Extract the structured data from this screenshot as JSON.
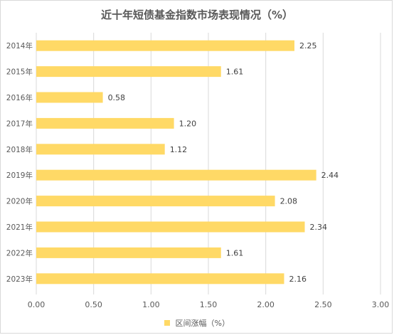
{
  "title": "近十年短债基金指数市场表现情况（%）",
  "chart_data": {
    "type": "bar",
    "orientation": "horizontal",
    "title": "近十年短债基金指数市场表现情况（%）",
    "categories": [
      "2014年",
      "2015年",
      "2016年",
      "2017年",
      "2018年",
      "2019年",
      "2020年",
      "2021年",
      "2022年",
      "2023年"
    ],
    "series": [
      {
        "name": "区间涨幅（%）",
        "values": [
          2.25,
          1.61,
          0.58,
          1.2,
          1.12,
          2.44,
          2.08,
          2.34,
          1.61,
          2.16
        ],
        "labels": [
          "2.25",
          "1.61",
          "0.58",
          "1.20",
          "1.12",
          "2.44",
          "2.08",
          "2.34",
          "1.61",
          "2.16"
        ]
      }
    ],
    "xlim": [
      0,
      3
    ],
    "xticks": [
      "0.00",
      "0.50",
      "1.00",
      "1.50",
      "2.00",
      "2.50",
      "3.00"
    ],
    "grid": true,
    "legend_position": "bottom",
    "bar_color": "#FFD966"
  }
}
